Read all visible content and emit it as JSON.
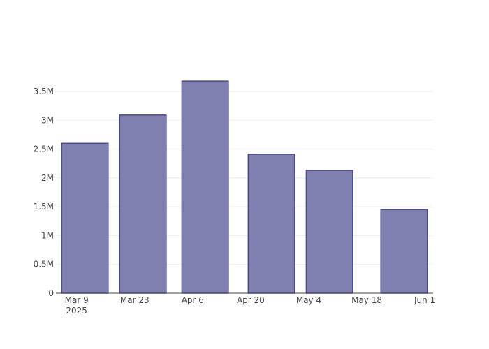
{
  "chart_data": {
    "type": "bar",
    "x": [
      "2025-03-11",
      "2025-03-25",
      "2025-04-09",
      "2025-04-25",
      "2025-05-09",
      "2025-05-27"
    ],
    "values": [
      2600000,
      3090000,
      3680000,
      2410000,
      2130000,
      1450000
    ],
    "color": "#7f7fb0",
    "line_color": "#4a4a8c",
    "xlim": [
      "2025-03-04",
      "2025-06-03"
    ],
    "xticks": [
      {
        "value": "2025-03-09",
        "label": "Mar 9"
      },
      {
        "value": "2025-03-23",
        "label": "Mar 23"
      },
      {
        "value": "2025-04-06",
        "label": "Apr 6"
      },
      {
        "value": "2025-04-20",
        "label": "Apr 20"
      },
      {
        "value": "2025-05-04",
        "label": "May 4"
      },
      {
        "value": "2025-05-18",
        "label": "May 18"
      },
      {
        "value": "2025-06-01",
        "label": "Jun 1"
      }
    ],
    "x_year_label": "2025",
    "ylim": [
      0,
      3875000
    ],
    "yticks": [
      0,
      {
        "value": 500000,
        "label": "0.5M"
      },
      {
        "value": 1000000,
        "label": "1M"
      },
      {
        "value": 1500000,
        "label": "1.5M"
      },
      {
        "value": 2000000,
        "label": "2M"
      },
      {
        "value": 2500000,
        "label": "2.5M"
      },
      {
        "value": 3000000,
        "label": "3M"
      },
      {
        "value": 3500000,
        "label": "3.5M"
      }
    ],
    "grid": true
  }
}
